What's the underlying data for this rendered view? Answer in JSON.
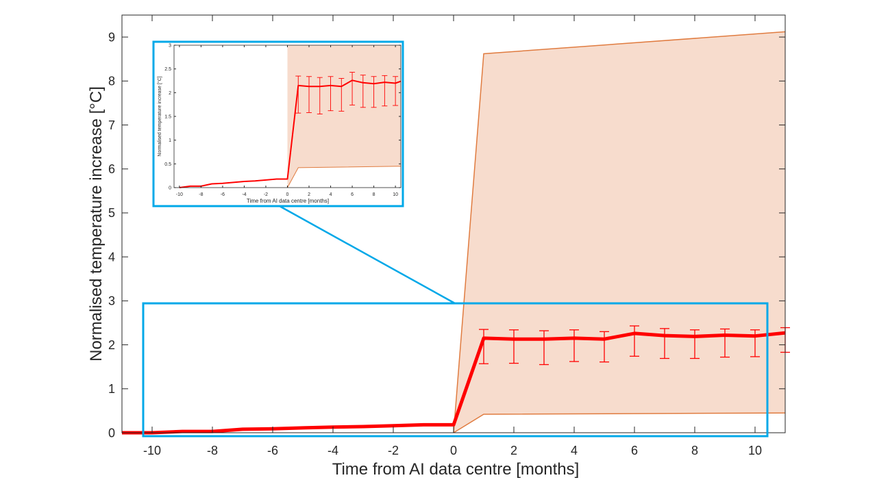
{
  "colors": {
    "line": "#ff0000",
    "band_fill": "#f7dccd",
    "band_edge": "#e07b3f",
    "highlight": "#00a8e8",
    "axis": "#262626"
  },
  "chart_data": [
    {
      "type": "line",
      "xlabel": "Time from AI data centre [months]",
      "ylabel": "Normalised temperature increase [°C]",
      "xlim": [
        -11,
        11
      ],
      "ylim": [
        0,
        9.5
      ],
      "xticks": [
        -10,
        -8,
        -6,
        -4,
        -2,
        0,
        2,
        4,
        6,
        8,
        10
      ],
      "yticks": [
        0,
        1,
        2,
        3,
        4,
        5,
        6,
        7,
        8,
        9
      ],
      "grid": false,
      "series": [
        {
          "x": [
            -11,
            -10,
            -9,
            -8,
            -7,
            -6,
            -5,
            -4,
            -3,
            -2,
            -1,
            0,
            1,
            2,
            3,
            4,
            5,
            6,
            7,
            8,
            9,
            10,
            11
          ],
          "values": [
            0.0,
            0.0,
            0.03,
            0.03,
            0.08,
            0.09,
            0.11,
            0.13,
            0.14,
            0.16,
            0.18,
            0.18,
            2.15,
            2.13,
            2.13,
            2.15,
            2.13,
            2.26,
            2.21,
            2.19,
            2.22,
            2.2,
            2.27
          ],
          "error_low": [
            null,
            null,
            null,
            null,
            null,
            null,
            null,
            null,
            null,
            null,
            null,
            null,
            1.57,
            1.58,
            1.55,
            1.62,
            1.61,
            1.74,
            1.69,
            1.69,
            1.72,
            1.73,
            1.83
          ],
          "error_high": [
            null,
            null,
            null,
            null,
            null,
            null,
            null,
            null,
            null,
            null,
            null,
            null,
            2.35,
            2.34,
            2.32,
            2.34,
            2.3,
            2.43,
            2.37,
            2.34,
            2.36,
            2.34,
            2.39
          ]
        }
      ],
      "band": {
        "x": [
          0,
          1,
          11
        ],
        "upper": [
          0.0,
          8.62,
          9.12
        ],
        "lower": [
          0.0,
          0.42,
          0.45
        ]
      },
      "highlight_region": {
        "x": [
          -10.4,
          10.4
        ],
        "y": [
          -0.1,
          2.97
        ]
      }
    },
    {
      "type": "line",
      "role": "inset",
      "xlabel": "Time from AI data centre [months]",
      "ylabel": "Normalised temperature increase [°C]",
      "xlim": [
        -10.5,
        10.5
      ],
      "ylim": [
        0,
        3
      ],
      "xticks": [
        -10,
        -8,
        -6,
        -4,
        -2,
        0,
        2,
        4,
        6,
        8,
        10
      ],
      "yticks": [
        0,
        0.5,
        1,
        1.5,
        2,
        2.5,
        3
      ],
      "grid": false,
      "series": [
        {
          "x": [
            -10,
            -9,
            -8,
            -7,
            -6,
            -5,
            -4,
            -3,
            -2,
            -1,
            0,
            1,
            2,
            3,
            4,
            5,
            6,
            7,
            8,
            9,
            10,
            10.5
          ],
          "values": [
            0.0,
            0.03,
            0.03,
            0.08,
            0.09,
            0.11,
            0.13,
            0.14,
            0.16,
            0.18,
            0.18,
            2.15,
            2.13,
            2.13,
            2.15,
            2.13,
            2.26,
            2.21,
            2.19,
            2.22,
            2.2,
            2.24
          ],
          "error_low": [
            null,
            null,
            null,
            null,
            null,
            null,
            null,
            null,
            null,
            null,
            null,
            1.57,
            1.58,
            1.55,
            1.62,
            1.61,
            1.74,
            1.69,
            1.69,
            1.72,
            1.73,
            null
          ],
          "error_high": [
            null,
            null,
            null,
            null,
            null,
            null,
            null,
            null,
            null,
            null,
            null,
            2.35,
            2.34,
            2.32,
            2.34,
            2.3,
            2.43,
            2.37,
            2.34,
            2.36,
            2.34,
            null
          ]
        }
      ],
      "band": {
        "x": [
          0,
          1,
          10.5
        ],
        "upper": [
          3.0,
          3.0,
          3.0
        ],
        "lower": [
          0.0,
          0.42,
          0.45
        ]
      }
    }
  ]
}
